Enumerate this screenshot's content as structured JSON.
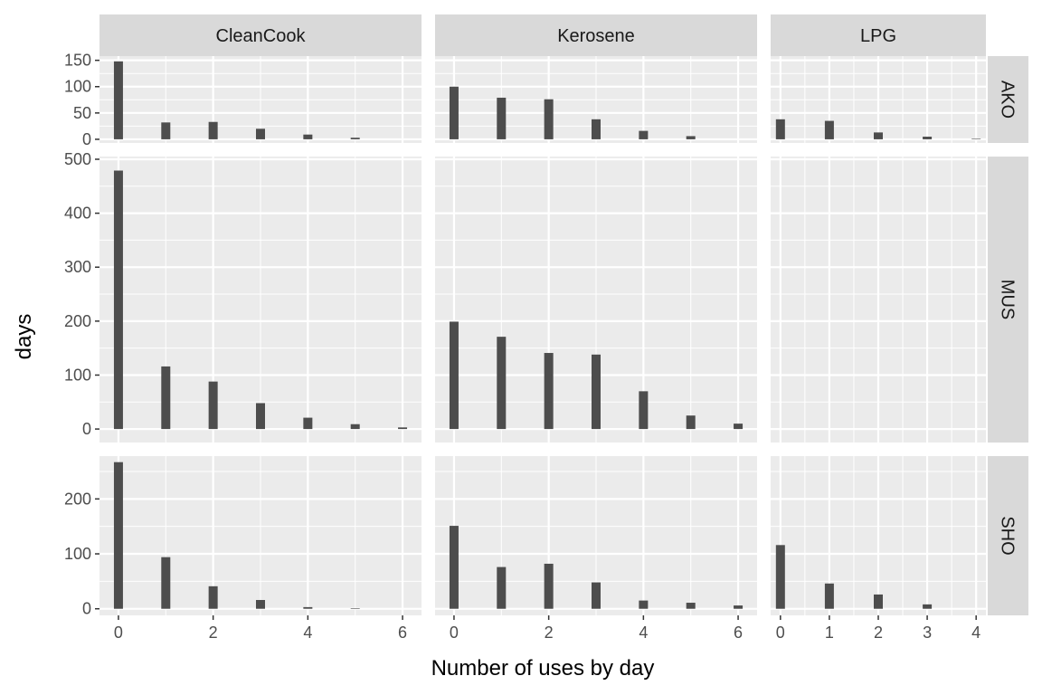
{
  "chart_data": {
    "type": "bar",
    "title": "",
    "xlabel": "Number of uses by day",
    "ylabel": "days",
    "facet_cols": [
      {
        "name": "CleanCook",
        "xlim": [
          -0.4,
          6.4
        ],
        "xticks": [
          0,
          2,
          4,
          6
        ],
        "xticks_minor": [
          1,
          3,
          5
        ]
      },
      {
        "name": "Kerosene",
        "xlim": [
          -0.4,
          6.4
        ],
        "xticks": [
          0,
          2,
          4,
          6
        ],
        "xticks_minor": [
          1,
          3,
          5
        ]
      },
      {
        "name": "LPG",
        "xlim": [
          -0.2,
          4.2
        ],
        "xticks": [
          0,
          1,
          2,
          3,
          4
        ],
        "xticks_minor": [
          0.5,
          1.5,
          2.5,
          3.5
        ]
      }
    ],
    "facet_rows": [
      {
        "name": "AKO",
        "ylim": [
          -7,
          158
        ],
        "yticks": [
          0,
          50,
          100,
          150
        ],
        "yticks_minor": [
          25,
          75,
          125
        ]
      },
      {
        "name": "MUS",
        "ylim": [
          -25,
          505
        ],
        "yticks": [
          0,
          100,
          200,
          300,
          400,
          500
        ],
        "yticks_minor": [
          50,
          150,
          250,
          350,
          450
        ]
      },
      {
        "name": "SHO",
        "ylim": [
          -12,
          278
        ],
        "yticks": [
          0,
          100,
          200
        ],
        "yticks_minor": [
          50,
          150,
          250
        ]
      }
    ],
    "panels": [
      {
        "row": "AKO",
        "col": "CleanCook",
        "x": [
          0,
          1,
          2,
          3,
          4,
          5
        ],
        "values": [
          148,
          32,
          33,
          20,
          9,
          3
        ]
      },
      {
        "row": "AKO",
        "col": "Kerosene",
        "x": [
          0,
          1,
          2,
          3,
          4,
          5
        ],
        "values": [
          100,
          79,
          76,
          38,
          16,
          6
        ]
      },
      {
        "row": "AKO",
        "col": "LPG",
        "x": [
          0,
          1,
          2,
          3,
          4
        ],
        "values": [
          38,
          35,
          13,
          5,
          1
        ]
      },
      {
        "row": "MUS",
        "col": "CleanCook",
        "x": [
          0,
          1,
          2,
          3,
          4,
          5,
          6
        ],
        "values": [
          479,
          116,
          88,
          48,
          21,
          9,
          3
        ]
      },
      {
        "row": "MUS",
        "col": "Kerosene",
        "x": [
          0,
          1,
          2,
          3,
          4,
          5,
          6
        ],
        "values": [
          199,
          171,
          141,
          138,
          70,
          25,
          10
        ]
      },
      {
        "row": "MUS",
        "col": "LPG",
        "x": [],
        "values": []
      },
      {
        "row": "SHO",
        "col": "CleanCook",
        "x": [
          0,
          1,
          2,
          3,
          4,
          5
        ],
        "values": [
          267,
          94,
          41,
          16,
          3,
          1
        ]
      },
      {
        "row": "SHO",
        "col": "Kerosene",
        "x": [
          0,
          1,
          2,
          3,
          4,
          5,
          6
        ],
        "values": [
          151,
          76,
          82,
          48,
          15,
          11,
          6
        ]
      },
      {
        "row": "SHO",
        "col": "LPG",
        "x": [
          0,
          1,
          2,
          3
        ],
        "values": [
          116,
          46,
          26,
          8
        ]
      }
    ],
    "colors": {
      "bar": "#4d4d4d",
      "panel_background": "#ebebeb",
      "grid": "#ffffff",
      "strip_background": "#d9d9d9"
    },
    "grid": true,
    "legend": "none"
  }
}
